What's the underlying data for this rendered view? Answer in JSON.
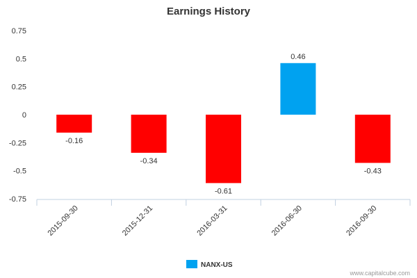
{
  "chart_data": {
    "type": "bar",
    "title": "Earnings History",
    "categories": [
      "2015-09-30",
      "2015-12-31",
      "2016-03-31",
      "2016-06-30",
      "2016-09-30"
    ],
    "values": [
      -0.16,
      -0.34,
      -0.61,
      0.46,
      -0.43
    ],
    "data_labels": [
      "-0.16",
      "-0.34",
      "-0.61",
      "0.46",
      "-0.43"
    ],
    "y_ticks": [
      0.75,
      0.5,
      0.25,
      0,
      -0.25,
      -0.5,
      -0.75
    ],
    "y_tick_labels": [
      "0.75",
      "0.5",
      "0.25",
      "0",
      "-0.25",
      "-0.5",
      "-0.75"
    ],
    "ylim": [
      -0.75,
      0.75
    ],
    "xlabel": "",
    "ylabel": "",
    "grid": false,
    "legend": {
      "entries": [
        {
          "name": "NANX-US",
          "color": "#00a2f0"
        }
      ],
      "placement": "bottom-center"
    },
    "colors": {
      "positive": "#00a2f0",
      "negative": "#ff0000",
      "axis": "#c0d0e0",
      "text": "#333333"
    }
  },
  "credit": "www.capitalcube.com"
}
